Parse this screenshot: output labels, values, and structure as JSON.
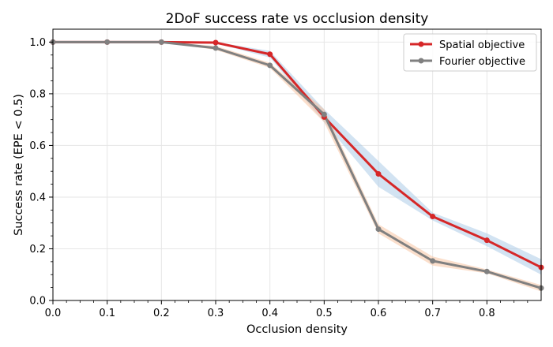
{
  "chart_data": {
    "type": "line",
    "title": "2DoF success rate vs occlusion density",
    "xlabel": "Occlusion density",
    "ylabel": "Success rate (EPE < 0.5)",
    "xlim": [
      0.0,
      0.9
    ],
    "ylim": [
      0.0,
      1.05
    ],
    "x_ticks": [
      "0.0",
      "0.1",
      "0.2",
      "0.3",
      "0.4",
      "0.5",
      "0.6",
      "0.7",
      "0.8"
    ],
    "y_ticks": [
      "0.0",
      "0.2",
      "0.4",
      "0.6",
      "0.8",
      "1.0"
    ],
    "grid": true,
    "legend_position": "top-right",
    "x": [
      0.0,
      0.1,
      0.2,
      0.3,
      0.4,
      0.5,
      0.6,
      0.7,
      0.8,
      0.9
    ],
    "series": [
      {
        "name": "Spatial objective",
        "color": "#d62728",
        "band_color": "#a6c8e6",
        "values": [
          1.0,
          1.0,
          1.0,
          0.998,
          0.953,
          0.71,
          0.49,
          0.325,
          0.233,
          0.128
        ],
        "lower": [
          1.0,
          1.0,
          1.0,
          0.995,
          0.94,
          0.69,
          0.44,
          0.31,
          0.21,
          0.1
        ],
        "upper": [
          1.0,
          1.0,
          1.0,
          1.0,
          0.966,
          0.74,
          0.54,
          0.34,
          0.26,
          0.16
        ]
      },
      {
        "name": "Fourier objective",
        "color": "#808080",
        "band_color": "#f8c09a",
        "values": [
          1.0,
          1.0,
          1.0,
          0.977,
          0.91,
          0.72,
          0.276,
          0.153,
          0.112,
          0.048
        ],
        "lower": [
          1.0,
          1.0,
          1.0,
          0.97,
          0.9,
          0.69,
          0.26,
          0.135,
          0.105,
          0.035
        ],
        "upper": [
          1.0,
          1.0,
          1.0,
          0.985,
          0.92,
          0.74,
          0.295,
          0.17,
          0.12,
          0.06
        ]
      }
    ]
  }
}
